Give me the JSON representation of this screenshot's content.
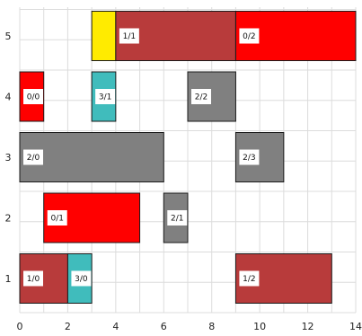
{
  "chart_data": {
    "type": "gantt",
    "xlim": [
      0,
      14
    ],
    "x_ticks": [
      "0",
      "2",
      "4",
      "6",
      "8",
      "10",
      "12",
      "14"
    ],
    "y_ticks": [
      "1",
      "2",
      "3",
      "4",
      "5"
    ],
    "grid": true,
    "legend": "none",
    "colors": {
      "red": "#ff0000",
      "darkred": "#b83b3b",
      "teal": "#40bcbc",
      "gray": "#808080",
      "yellow": "#ffeb00"
    },
    "tasks": [
      {
        "row": 1,
        "start": 0,
        "end": 2,
        "label": "1/0",
        "color": "darkred"
      },
      {
        "row": 1,
        "start": 2,
        "end": 3,
        "label": "3/0",
        "color": "teal"
      },
      {
        "row": 1,
        "start": 9,
        "end": 13,
        "label": "1/2",
        "color": "darkred"
      },
      {
        "row": 2,
        "start": 1,
        "end": 5,
        "label": "0/1",
        "color": "red"
      },
      {
        "row": 2,
        "start": 6,
        "end": 7,
        "label": "2/1",
        "color": "gray"
      },
      {
        "row": 3,
        "start": 0,
        "end": 6,
        "label": "2/0",
        "color": "gray"
      },
      {
        "row": 3,
        "start": 9,
        "end": 11,
        "label": "2/3",
        "color": "gray"
      },
      {
        "row": 4,
        "start": 0,
        "end": 1,
        "label": "0/0",
        "color": "red"
      },
      {
        "row": 4,
        "start": 3,
        "end": 4,
        "label": "3/1",
        "color": "teal"
      },
      {
        "row": 4,
        "start": 7,
        "end": 9,
        "label": "2/2",
        "color": "gray"
      },
      {
        "row": 5,
        "start": 3,
        "end": 4,
        "label": "",
        "color": "yellow"
      },
      {
        "row": 5,
        "start": 4,
        "end": 9,
        "label": "1/1",
        "color": "darkred"
      },
      {
        "row": 5,
        "start": 9,
        "end": 14,
        "label": "0/2",
        "color": "red"
      }
    ]
  }
}
